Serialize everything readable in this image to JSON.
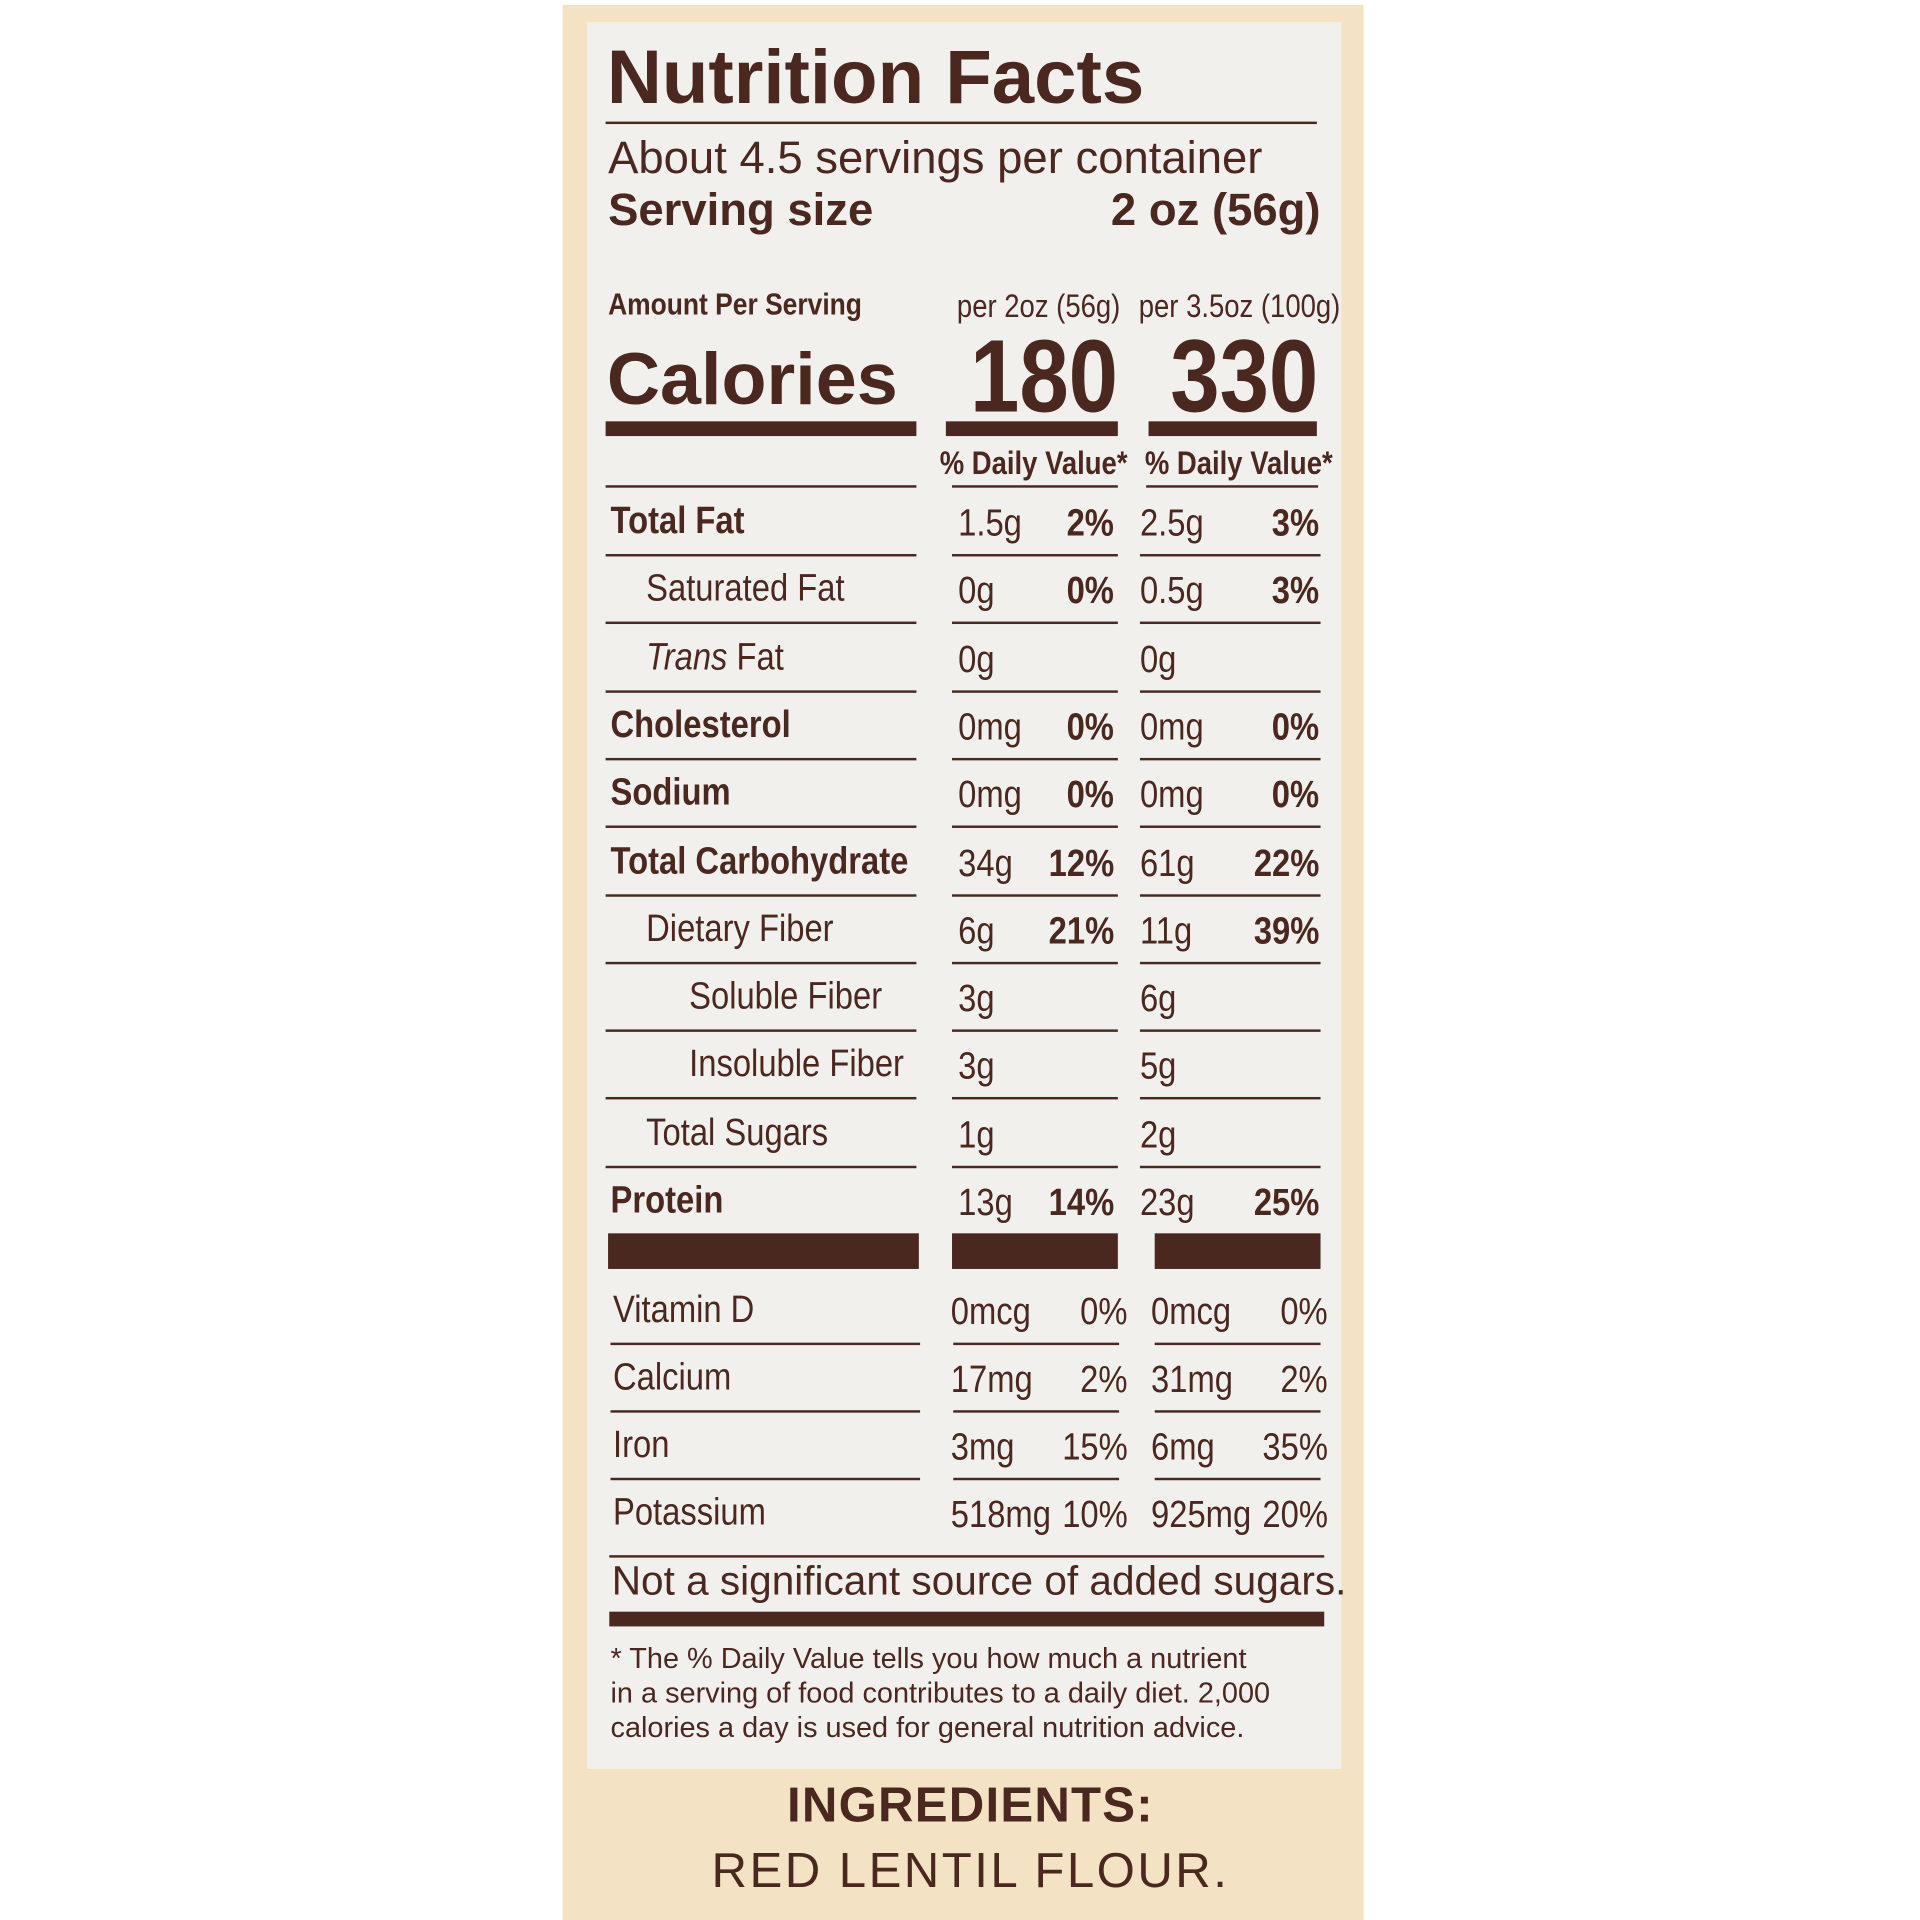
{
  "title": "Nutrition Facts",
  "servings_per_container": "About 4.5 servings per container",
  "serving_size_label": "Serving size",
  "serving_size_value": "2 oz (56g)",
  "amount_per_serving": "Amount Per Serving",
  "col1_header": "per 2oz (56g)",
  "col2_header": "per 3.5oz (100g)",
  "calories_label": "Calories",
  "calories_col1": "180",
  "calories_col2": "330",
  "daily_value_header": "% Daily Value*",
  "nutrients": [
    {
      "label": "Total Fat",
      "bold": true,
      "indent": 0,
      "a1": "1.5g",
      "p1": "2%",
      "a2": "2.5g",
      "p2": "3%"
    },
    {
      "label": "Saturated Fat",
      "bold": false,
      "indent": 1,
      "a1": "0g",
      "p1": "0%",
      "a2": "0.5g",
      "p2": "3%"
    },
    {
      "label_italic": "Trans",
      "label": " Fat",
      "bold": false,
      "indent": 1,
      "a1": "0g",
      "p1": "",
      "a2": "0g",
      "p2": ""
    },
    {
      "label": "Cholesterol",
      "bold": true,
      "indent": 0,
      "a1": "0mg",
      "p1": "0%",
      "a2": "0mg",
      "p2": "0%"
    },
    {
      "label": "Sodium",
      "bold": true,
      "indent": 0,
      "a1": "0mg",
      "p1": "0%",
      "a2": "0mg",
      "p2": "0%"
    },
    {
      "label": "Total Carbohydrate",
      "bold": true,
      "indent": 0,
      "a1": "34g",
      "p1": "12%",
      "a2": "61g",
      "p2": "22%"
    },
    {
      "label": "Dietary Fiber",
      "bold": false,
      "indent": 1,
      "a1": "6g",
      "p1": "21%",
      "a2": "11g",
      "p2": "39%"
    },
    {
      "label": "Soluble Fiber",
      "bold": false,
      "indent": 2,
      "a1": "3g",
      "p1": "",
      "a2": "6g",
      "p2": ""
    },
    {
      "label": "Insoluble Fiber",
      "bold": false,
      "indent": 2,
      "a1": "3g",
      "p1": "",
      "a2": "5g",
      "p2": ""
    },
    {
      "label": "Total Sugars",
      "bold": false,
      "indent": 1,
      "a1": "1g",
      "p1": "",
      "a2": "2g",
      "p2": ""
    },
    {
      "label": "Protein",
      "bold": true,
      "indent": 0,
      "a1": "13g",
      "p1": "14%",
      "a2": "23g",
      "p2": "25%"
    }
  ],
  "vitamins": [
    {
      "label": "Vitamin D",
      "a1": "0mcg",
      "p1": "0%",
      "a2": "0mcg",
      "p2": "0%"
    },
    {
      "label": "Calcium",
      "a1": "17mg",
      "p1": "2%",
      "a2": "31mg",
      "p2": "2%"
    },
    {
      "label": "Iron",
      "a1": "3mg",
      "p1": "15%",
      "a2": "6mg",
      "p2": "35%"
    },
    {
      "label": "Potassium",
      "a1": "518mg",
      "p1": "10%",
      "a2": "925mg",
      "p2": "20%"
    }
  ],
  "added_sugars_note": "Not a significant source of added sugars.",
  "footnote_lines": [
    "* The % Daily Value tells you how much a nutrient",
    "in a serving of food contributes to a daily diet. 2,000",
    "calories a day is used for general nutrition advice."
  ],
  "ingredients_heading": "INGREDIENTS:",
  "ingredients_text": "RED LENTIL FLOUR.",
  "colors": {
    "text": "#4a2820",
    "panel": "#f2f0ed",
    "background": "#f3e2c4"
  }
}
